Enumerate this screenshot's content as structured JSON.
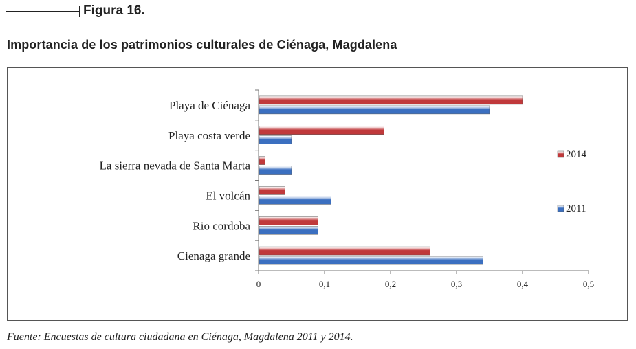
{
  "figure_label": "Figura 16.",
  "title": "Importancia de los patrimonios culturales de Ciénaga, Magdalena",
  "source": "Fuente: Encuestas de cultura ciudadana en Ciénaga, Magdalena 2011 y 2014.",
  "chart_data": {
    "type": "bar",
    "orientation": "horizontal",
    "categories": [
      "Playa de Ciénaga",
      "Playa costa verde",
      "La sierra nevada de Santa Marta",
      "El volcán",
      "Rio cordoba",
      "Cienaga grande"
    ],
    "series": [
      {
        "name": "2014",
        "color": "#c0393b",
        "values": [
          0.4,
          0.19,
          0.01,
          0.04,
          0.09,
          0.26
        ]
      },
      {
        "name": "2011",
        "color": "#3b6fc0",
        "values": [
          0.35,
          0.05,
          0.05,
          0.11,
          0.09,
          0.34
        ]
      }
    ],
    "xlim": [
      0,
      0.5
    ],
    "xticks": [
      0,
      0.1,
      0.2,
      0.3,
      0.4,
      0.5
    ],
    "xtick_labels": [
      "0",
      "0,1",
      "0,2",
      "0,3",
      "0,4",
      "0,5"
    ],
    "grid": false,
    "legend_position": "right"
  }
}
